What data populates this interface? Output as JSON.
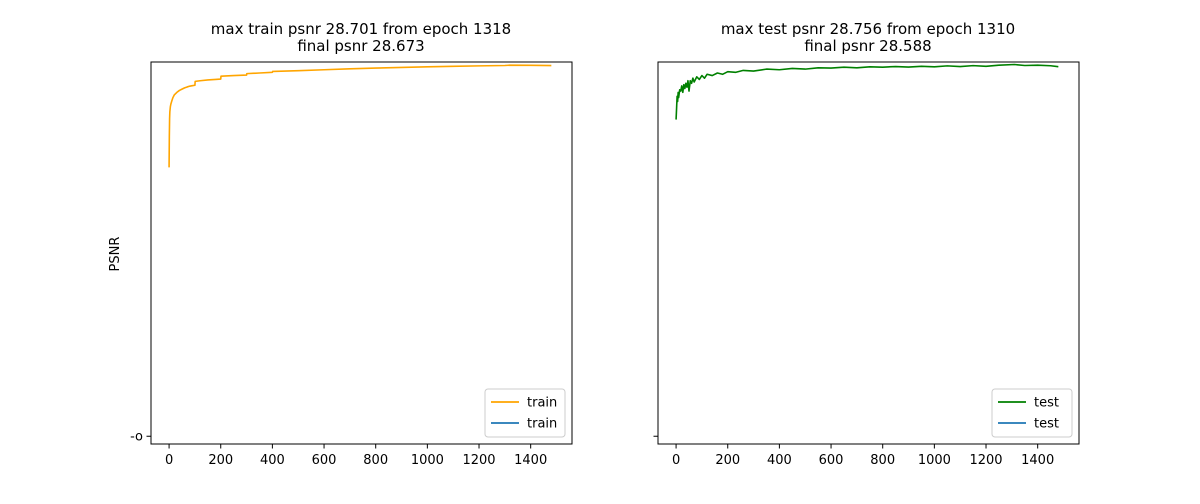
{
  "figure": {
    "background": "#ffffff"
  },
  "colors": {
    "train_orange": "#ffa500",
    "test_green": "#008000",
    "default_blue": "#1f77b4",
    "axis": "#000000",
    "legend_border": "#cccccc"
  },
  "chart_data": [
    {
      "type": "line",
      "title_line1": "max train psnr 28.701 from epoch 1318",
      "title_line2": "final psnr 28.673",
      "xlabel": "",
      "ylabel": "PSNR",
      "xlim": [
        -70,
        1560
      ],
      "ylim": [
        -0.6,
        28.95
      ],
      "x_ticks": [
        0,
        200,
        400,
        600,
        800,
        1000,
        1200,
        1400
      ],
      "x_tick_labels": [
        "0",
        "200",
        "400",
        "600",
        "800",
        "1000",
        "1200",
        "1400"
      ],
      "y_ticks": [
        0
      ],
      "y_tick_labels": [
        "-o"
      ],
      "legend": {
        "placement": "lower-right",
        "entries": [
          {
            "label": "train",
            "color": "#ffa500"
          },
          {
            "label": "train",
            "color": "#1f77b4"
          }
        ]
      },
      "series": [
        {
          "name": "train",
          "color": "#ffa500",
          "x": [
            0,
            1,
            2,
            3,
            5,
            7,
            10,
            15,
            20,
            30,
            40,
            50,
            60,
            70,
            80,
            90,
            100,
            101,
            120,
            150,
            180,
            200,
            201,
            250,
            300,
            301,
            350,
            400,
            401,
            500,
            600,
            700,
            800,
            900,
            1000,
            1100,
            1200,
            1300,
            1318,
            1400,
            1480
          ],
          "y": [
            20.8,
            23.2,
            24.6,
            25.1,
            25.5,
            25.7,
            25.9,
            26.2,
            26.4,
            26.6,
            26.75,
            26.85,
            26.95,
            27.02,
            27.08,
            27.12,
            27.15,
            27.45,
            27.5,
            27.56,
            27.6,
            27.63,
            27.85,
            27.9,
            27.94,
            28.05,
            28.1,
            28.15,
            28.22,
            28.28,
            28.35,
            28.42,
            28.48,
            28.53,
            28.58,
            28.62,
            28.65,
            28.68,
            28.701,
            28.69,
            28.673
          ]
        }
      ]
    },
    {
      "type": "line",
      "title_line1": "max test psnr 28.756 from epoch 1310",
      "title_line2": "final psnr 28.588",
      "xlabel": "",
      "ylabel": "",
      "xlim": [
        -70,
        1560
      ],
      "ylim": [
        -0.6,
        28.95
      ],
      "x_ticks": [
        0,
        200,
        400,
        600,
        800,
        1000,
        1200,
        1400
      ],
      "x_tick_labels": [
        "0",
        "200",
        "400",
        "600",
        "800",
        "1000",
        "1200",
        "1400"
      ],
      "y_ticks": [
        0
      ],
      "y_tick_labels": [
        ""
      ],
      "legend": {
        "placement": "lower-right",
        "entries": [
          {
            "label": "test",
            "color": "#008000"
          },
          {
            "label": "test",
            "color": "#1f77b4"
          }
        ]
      },
      "series": [
        {
          "name": "test",
          "color": "#008000",
          "x": [
            0,
            2,
            4,
            6,
            8,
            10,
            14,
            18,
            22,
            26,
            30,
            34,
            38,
            42,
            46,
            50,
            55,
            60,
            65,
            70,
            80,
            90,
            100,
            110,
            120,
            140,
            160,
            180,
            200,
            230,
            260,
            300,
            350,
            400,
            450,
            500,
            550,
            600,
            650,
            700,
            750,
            800,
            850,
            900,
            950,
            1000,
            1050,
            1100,
            1150,
            1200,
            1250,
            1310,
            1350,
            1400,
            1450,
            1480
          ],
          "y": [
            24.5,
            25.4,
            26.3,
            25.9,
            26.6,
            26.2,
            26.8,
            26.7,
            27.1,
            26.6,
            27.2,
            26.9,
            27.3,
            27.0,
            27.5,
            26.7,
            27.5,
            27.3,
            27.7,
            27.4,
            27.8,
            27.6,
            27.9,
            27.7,
            28.0,
            27.9,
            28.1,
            28.0,
            28.2,
            28.15,
            28.3,
            28.25,
            28.4,
            28.35,
            28.45,
            28.4,
            28.5,
            28.48,
            28.55,
            28.5,
            28.58,
            28.55,
            28.6,
            28.56,
            28.62,
            28.58,
            28.65,
            28.6,
            28.67,
            28.62,
            28.7,
            28.756,
            28.68,
            28.7,
            28.66,
            28.588
          ]
        }
      ]
    }
  ]
}
